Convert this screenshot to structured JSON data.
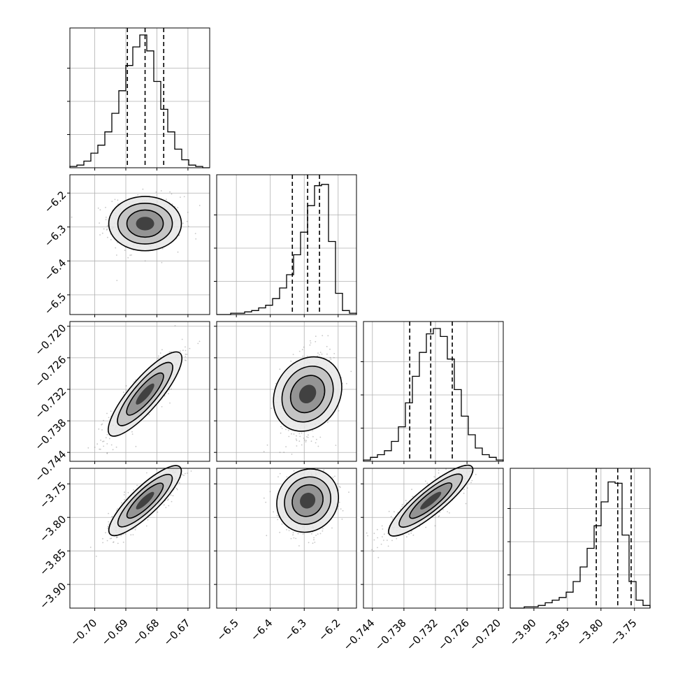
{
  "chart_data": {
    "type": "corner",
    "grid": true,
    "colors": {
      "line": "#000000",
      "grid": "#b0b0b0",
      "point": "#808080"
    },
    "parameters": [
      {
        "range": [
          -0.708,
          -0.663
        ],
        "ticks": [
          -0.7,
          -0.69,
          -0.68,
          -0.67
        ],
        "tick_labels": [
          "−0.70",
          "−0.69",
          "−0.68",
          "−0.67"
        ],
        "quantiles": [
          -0.6895,
          -0.6838,
          -0.6778
        ],
        "hist_counts": [
          0.01,
          0.02,
          0.05,
          0.11,
          0.17,
          0.27,
          0.41,
          0.58,
          0.77,
          0.91,
          1.0,
          0.88,
          0.65,
          0.44,
          0.27,
          0.14,
          0.06,
          0.02,
          0.01,
          0.0
        ]
      },
      {
        "range": [
          -6.558,
          -6.146
        ],
        "ticks": [
          -6.5,
          -6.4,
          -6.3,
          -6.2
        ],
        "tick_labels": [
          "−6.5",
          "−6.4",
          "−6.3",
          "−6.2"
        ],
        "quantiles": [
          -6.335,
          -6.29,
          -6.255
        ],
        "hist_counts": [
          0.0,
          0.0,
          0.01,
          0.01,
          0.02,
          0.03,
          0.05,
          0.07,
          0.12,
          0.2,
          0.3,
          0.45,
          0.62,
          0.82,
          0.97,
          0.98,
          0.55,
          0.16,
          0.03,
          0.01
        ]
      },
      {
        "range": [
          -0.7457,
          -0.7191
        ],
        "ticks": [
          -0.744,
          -0.738,
          -0.732,
          -0.726,
          -0.72
        ],
        "tick_labels": [
          "−0.744",
          "−0.738",
          "−0.732",
          "−0.726",
          "−0.720"
        ],
        "quantiles": [
          -0.7369,
          -0.7329,
          -0.7288
        ],
        "hist_counts": [
          0.01,
          0.03,
          0.05,
          0.08,
          0.15,
          0.26,
          0.44,
          0.64,
          0.82,
          0.96,
          1.0,
          0.94,
          0.77,
          0.54,
          0.34,
          0.2,
          0.1,
          0.05,
          0.03,
          0.01
        ]
      },
      {
        "range": [
          -3.9353,
          -3.7268
        ],
        "ticks": [
          -3.9,
          -3.85,
          -3.8,
          -3.75
        ],
        "tick_labels": [
          "−3.90",
          "−3.85",
          "−3.80",
          "−3.75"
        ],
        "quantiles": [
          -3.807,
          -3.775,
          -3.755
        ],
        "hist_counts": [
          0.0,
          0.0,
          0.01,
          0.01,
          0.02,
          0.04,
          0.06,
          0.08,
          0.12,
          0.2,
          0.31,
          0.45,
          0.62,
          0.8,
          0.95,
          0.94,
          0.55,
          0.2,
          0.06,
          0.02
        ]
      }
    ],
    "correlations": {
      "1,0": 0.0,
      "2,0": 0.85,
      "2,1": 0.2,
      "3,0": 0.85,
      "3,1": 0.1,
      "3,2": 0.88
    },
    "contour_levels": [
      0.12,
      0.39,
      0.68,
      0.86
    ]
  }
}
